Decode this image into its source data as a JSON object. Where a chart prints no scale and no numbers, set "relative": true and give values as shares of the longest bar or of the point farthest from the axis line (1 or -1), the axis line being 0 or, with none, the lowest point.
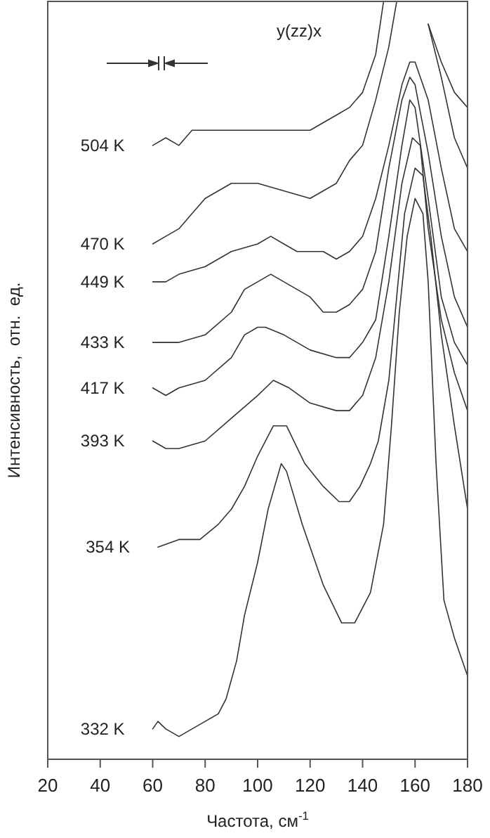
{
  "chart_data": {
    "type": "line",
    "relative": true,
    "title": "y(zz)x",
    "xlabel": "Частота, см$^{-1}$",
    "ylabel": "Интенсивность,  отн.  ед.",
    "xlim": [
      20,
      180
    ],
    "xticks": [
      20,
      40,
      60,
      80,
      100,
      120,
      140,
      160,
      180
    ],
    "marker": "none",
    "line_style": "solid",
    "grid": false,
    "series": [
      {
        "name": "504 K",
        "color": "#333333",
        "x": [
          60,
          65,
          70,
          75,
          80,
          90,
          100,
          110,
          120,
          125,
          130,
          135,
          140,
          145,
          148,
          150,
          162,
          165,
          170,
          175,
          180
        ],
        "values": [
          0.81,
          0.82,
          0.81,
          0.83,
          0.83,
          0.83,
          0.83,
          0.83,
          0.83,
          0.84,
          0.85,
          0.86,
          0.88,
          0.93,
          1,
          null,
          null,
          0.97,
          0.92,
          0.88,
          0.86
        ]
      },
      {
        "name": "470 K",
        "color": "#333333",
        "x": [
          60,
          65,
          70,
          75,
          80,
          85,
          90,
          100,
          110,
          120,
          125,
          130,
          135,
          140,
          145,
          150,
          153,
          163,
          165,
          170,
          175,
          180
        ],
        "values": [
          0.68,
          0.69,
          0.7,
          0.72,
          0.74,
          0.75,
          0.76,
          0.76,
          0.75,
          0.74,
          0.75,
          0.76,
          0.79,
          0.81,
          0.87,
          0.94,
          1,
          null,
          0.97,
          0.9,
          0.82,
          0.78
        ]
      },
      {
        "name": "449 K",
        "color": "#333333",
        "x": [
          60,
          65,
          70,
          80,
          90,
          100,
          105,
          110,
          115,
          120,
          125,
          130,
          135,
          140,
          145,
          150,
          155,
          158,
          160,
          165,
          170,
          175,
          180
        ],
        "values": [
          0.63,
          0.63,
          0.64,
          0.65,
          0.67,
          0.68,
          0.69,
          0.68,
          0.67,
          0.67,
          0.67,
          0.66,
          0.67,
          0.69,
          0.74,
          0.81,
          0.89,
          0.92,
          0.92,
          0.87,
          0.78,
          0.7,
          0.67
        ]
      },
      {
        "name": "433 K",
        "color": "#333333",
        "x": [
          60,
          70,
          80,
          90,
          95,
          100,
          105,
          110,
          115,
          120,
          125,
          130,
          135,
          140,
          145,
          150,
          155,
          158,
          160,
          165,
          170,
          175,
          180
        ],
        "values": [
          0.55,
          0.55,
          0.56,
          0.59,
          0.62,
          0.63,
          0.64,
          0.63,
          0.62,
          0.61,
          0.59,
          0.59,
          0.6,
          0.62,
          0.67,
          0.78,
          0.87,
          0.9,
          0.89,
          0.8,
          0.69,
          0.61,
          0.57
        ]
      },
      {
        "name": "417 K",
        "color": "#333333",
        "x": [
          60,
          65,
          70,
          80,
          90,
          95,
          100,
          103,
          110,
          120,
          130,
          135,
          140,
          145,
          150,
          155,
          158,
          160,
          165,
          170,
          175,
          180
        ],
        "values": [
          0.49,
          0.48,
          0.49,
          0.5,
          0.53,
          0.56,
          0.57,
          0.57,
          0.56,
          0.54,
          0.53,
          0.53,
          0.55,
          0.58,
          0.69,
          0.81,
          0.87,
          0.86,
          0.74,
          0.61,
          0.55,
          0.52
        ]
      },
      {
        "name": "393 K",
        "color": "#333333",
        "x": [
          60,
          65,
          70,
          80,
          90,
          100,
          106,
          112,
          120,
          130,
          135,
          140,
          145,
          150,
          155,
          159,
          162,
          165,
          170,
          175,
          180
        ],
        "values": [
          0.42,
          0.41,
          0.41,
          0.42,
          0.45,
          0.48,
          0.5,
          0.49,
          0.47,
          0.46,
          0.46,
          0.48,
          0.53,
          0.63,
          0.76,
          0.82,
          0.81,
          0.7,
          0.58,
          0.51,
          0.46
        ]
      },
      {
        "name": "354 K",
        "color": "#333333",
        "x": [
          62,
          70,
          78,
          85,
          90,
          95,
          100,
          106,
          111,
          118,
          125,
          131,
          135,
          139,
          143,
          146,
          150,
          153,
          156,
          160,
          163,
          166,
          170,
          175,
          180
        ],
        "values": [
          0.28,
          0.29,
          0.29,
          0.31,
          0.33,
          0.36,
          0.4,
          0.44,
          0.44,
          0.39,
          0.36,
          0.34,
          0.34,
          0.36,
          0.39,
          0.42,
          0.5,
          0.61,
          0.72,
          0.78,
          0.77,
          0.69,
          0.56,
          0.44,
          0.33
        ]
      },
      {
        "name": "332 K",
        "color": "#333333",
        "x": [
          60,
          62,
          65,
          70,
          75,
          80,
          85,
          88,
          92,
          95,
          100,
          104,
          109,
          111,
          117,
          125,
          132,
          137,
          143,
          148,
          151,
          154,
          157,
          160,
          163,
          165,
          168,
          171,
          175,
          180
        ],
        "values": [
          0.04,
          0.05,
          0.04,
          0.03,
          0.04,
          0.05,
          0.06,
          0.08,
          0.13,
          0.19,
          0.26,
          0.33,
          0.39,
          0.38,
          0.31,
          0.23,
          0.18,
          0.18,
          0.22,
          0.31,
          0.44,
          0.59,
          0.69,
          0.74,
          0.72,
          0.63,
          0.39,
          0.21,
          0.16,
          0.11
        ]
      }
    ]
  }
}
